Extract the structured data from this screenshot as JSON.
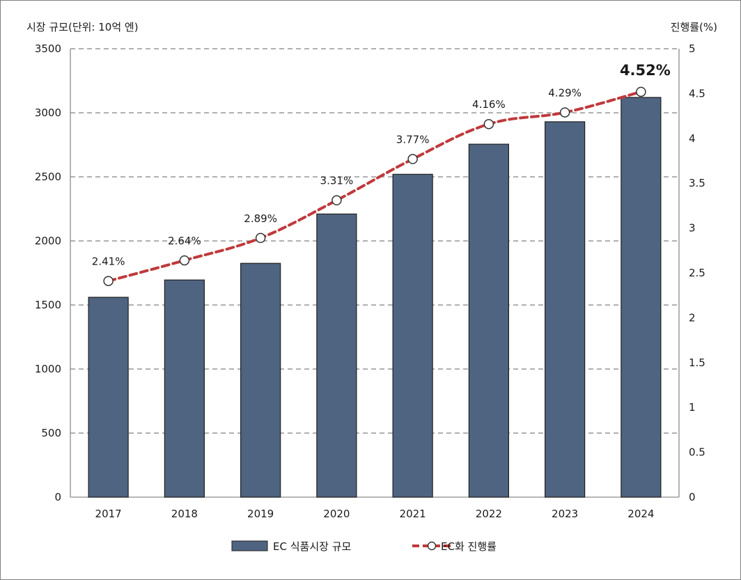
{
  "chart_data": {
    "type": "bar",
    "y_left_label": "시장 규모(단위: 10억 엔)",
    "y_right_label": "진행률(%)",
    "categories": [
      "2017",
      "2018",
      "2019",
      "2020",
      "2021",
      "2022",
      "2023",
      "2024"
    ],
    "series": [
      {
        "name": "EC 식품시장 규모",
        "type": "bar",
        "axis": "left",
        "color": "#4f6480",
        "values": [
          1560,
          1695,
          1825,
          2210,
          2520,
          2755,
          2930,
          3120
        ]
      },
      {
        "name": "EC화 진행률",
        "type": "line",
        "axis": "right",
        "color": "#c0393b",
        "dashed": true,
        "markers": "open-circle",
        "values": [
          2.41,
          2.64,
          2.89,
          3.31,
          3.77,
          4.16,
          4.29,
          4.52
        ],
        "labels": [
          "2.41%",
          "2.64%",
          "2.89%",
          "3.31%",
          "3.77%",
          "4.16%",
          "4.29%",
          "4.52%"
        ],
        "emphasized_label_index": 7
      }
    ],
    "y_left": {
      "min": 0,
      "max": 3500,
      "step": 500,
      "ticks": [
        "0",
        "500",
        "1000",
        "1500",
        "2000",
        "2500",
        "3000",
        "3500"
      ]
    },
    "y_right": {
      "min": 0,
      "max": 5,
      "step": 0.5,
      "ticks": [
        "0",
        "0.5",
        "1",
        "1.5",
        "2",
        "2.5",
        "3",
        "3.5",
        "4",
        "4.5",
        "5"
      ]
    },
    "grid": {
      "horizontal": true,
      "style": "dashed",
      "color": "#808080"
    },
    "legend_position": "bottom-center"
  }
}
